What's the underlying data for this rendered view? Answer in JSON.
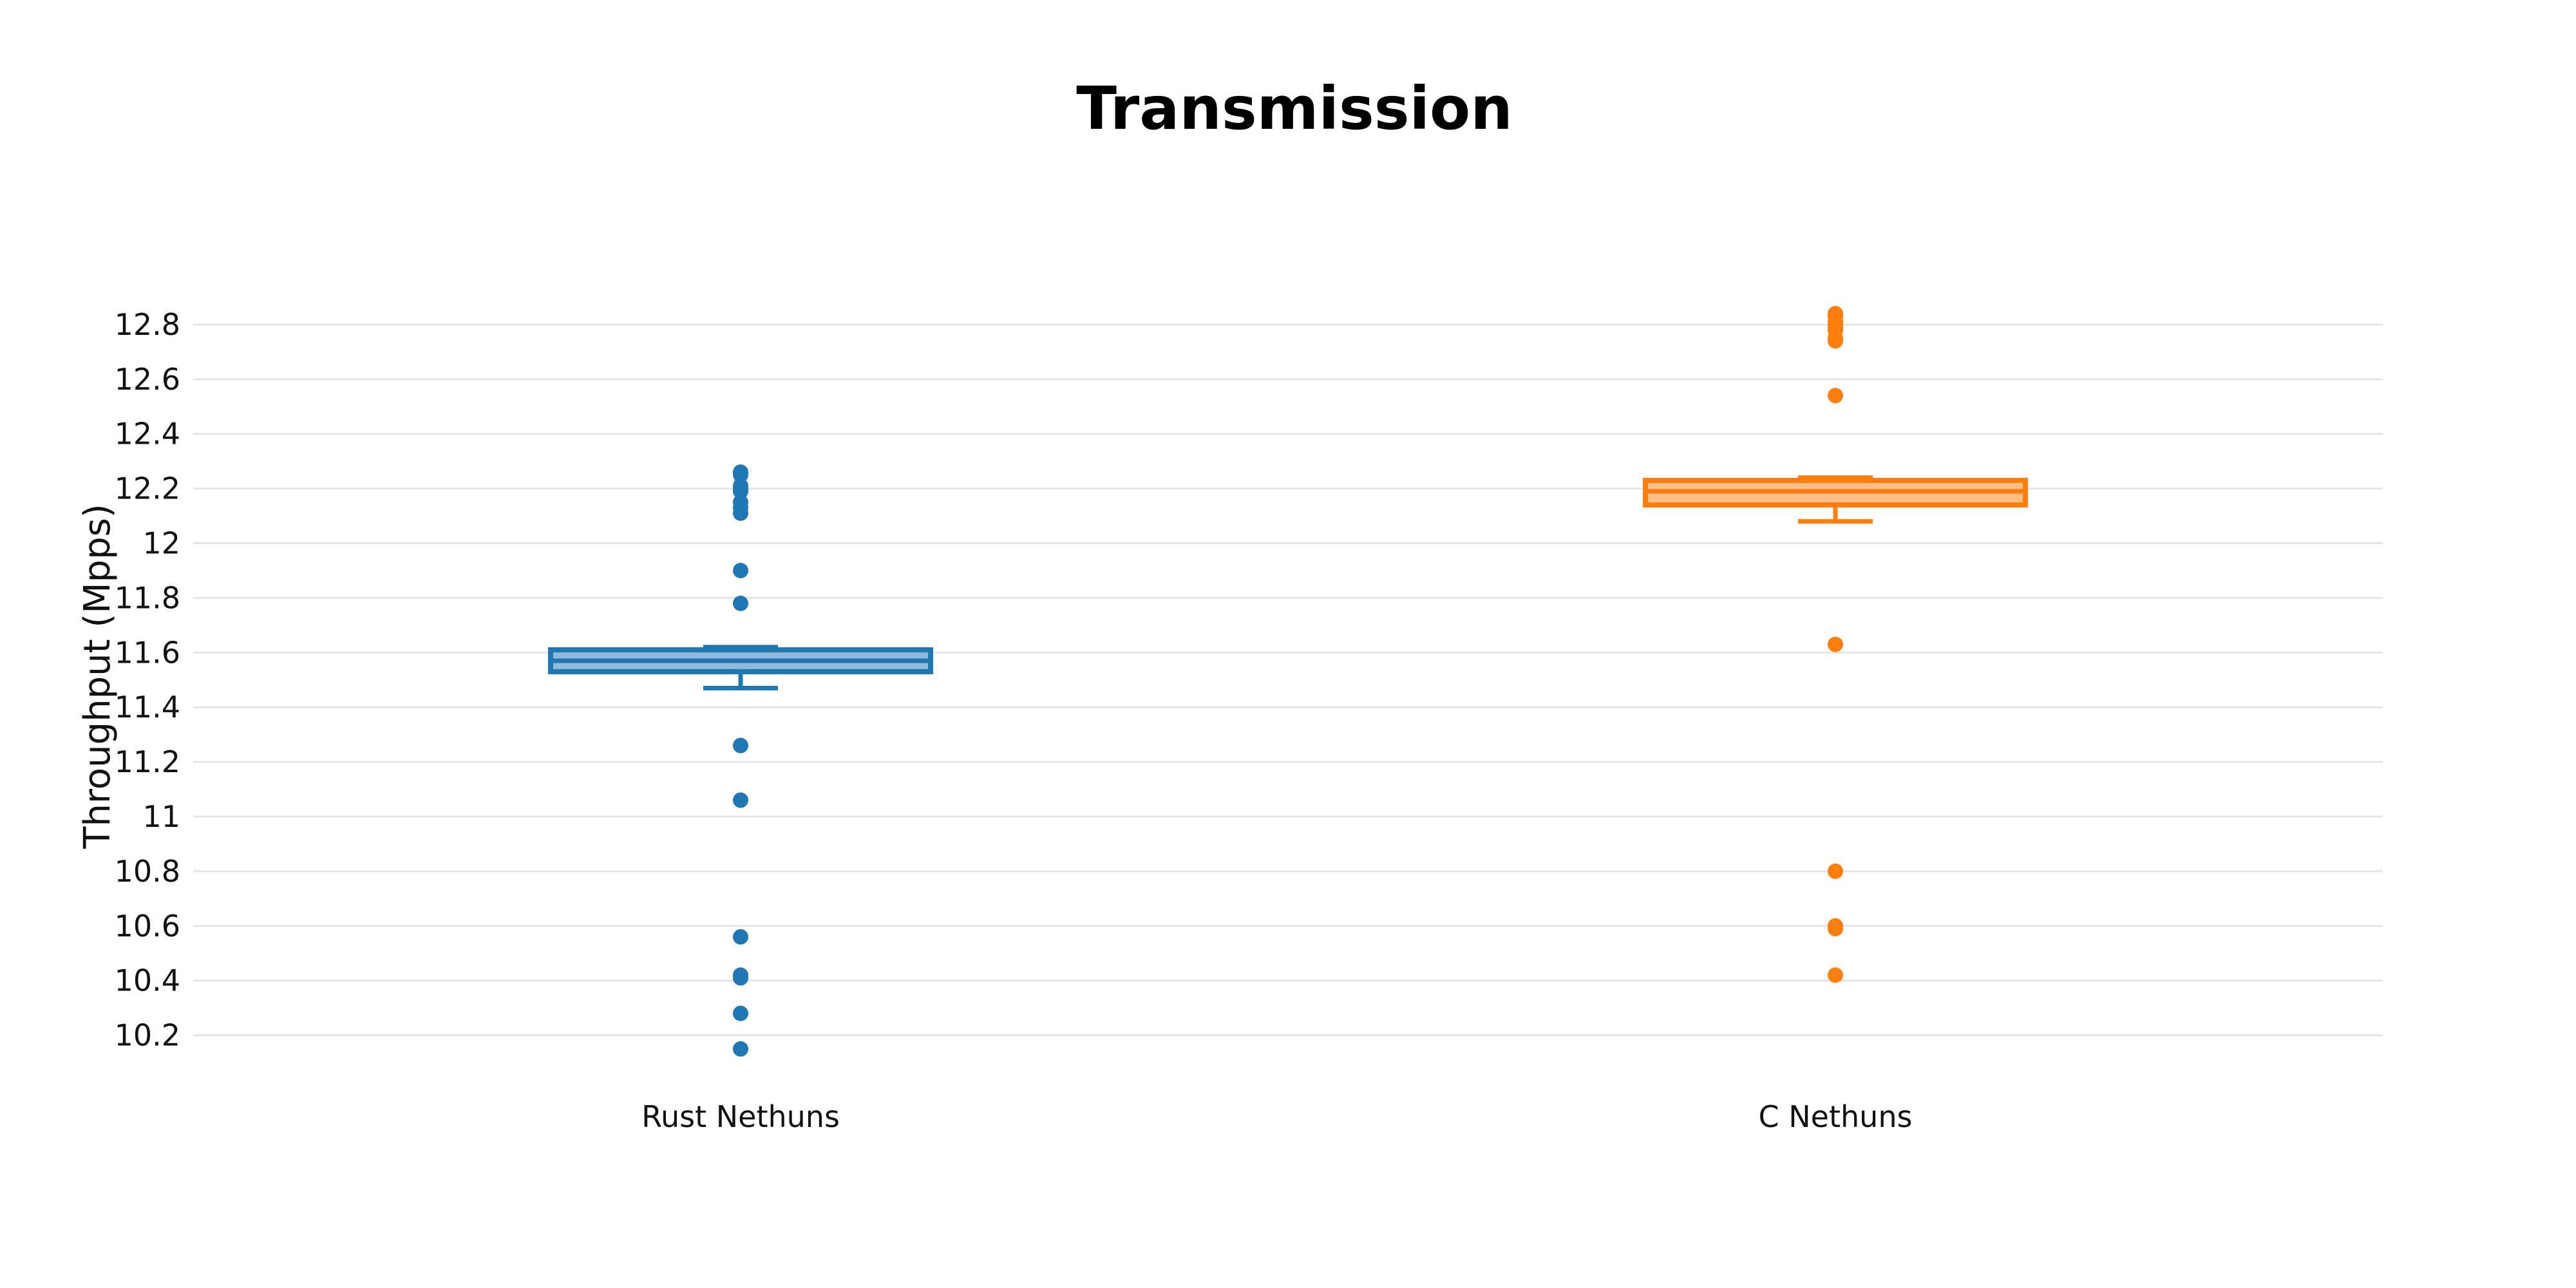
{
  "chart_data": {
    "type": "box",
    "title": "Transmission",
    "xlabel": "",
    "ylabel": "Throughput (Mpps)",
    "ylim": [
      10.1,
      12.88
    ],
    "yticks": [
      "10.2",
      "10.4",
      "10.6",
      "10.8",
      "11",
      "11.2",
      "11.4",
      "11.6",
      "11.8",
      "12",
      "12.2",
      "12.4",
      "12.6",
      "12.8"
    ],
    "grid": true,
    "categories": [
      "Rust Nethuns",
      "C Nethuns"
    ],
    "series": [
      {
        "category": "Rust Nethuns",
        "color": "#1f77b4",
        "fill": "#8fbbd9",
        "lower_fence": 11.47,
        "q1": 11.53,
        "median": 11.57,
        "q3": 11.61,
        "upper_fence": 11.62,
        "outliers": [
          12.26,
          12.25,
          12.21,
          12.2,
          12.19,
          12.15,
          12.13,
          12.11,
          11.9,
          11.78,
          11.26,
          11.06,
          10.56,
          10.42,
          10.41,
          10.28,
          10.15
        ]
      },
      {
        "category": "C Nethuns",
        "color": "#ff7f0e",
        "fill": "#ffbf86",
        "lower_fence": 12.08,
        "q1": 12.14,
        "median": 12.19,
        "q3": 12.23,
        "upper_fence": 12.24,
        "outliers": [
          12.84,
          12.83,
          12.81,
          12.8,
          12.79,
          12.78,
          12.75,
          12.74,
          12.54,
          11.63,
          10.8,
          10.6,
          10.59,
          10.42
        ]
      }
    ]
  }
}
